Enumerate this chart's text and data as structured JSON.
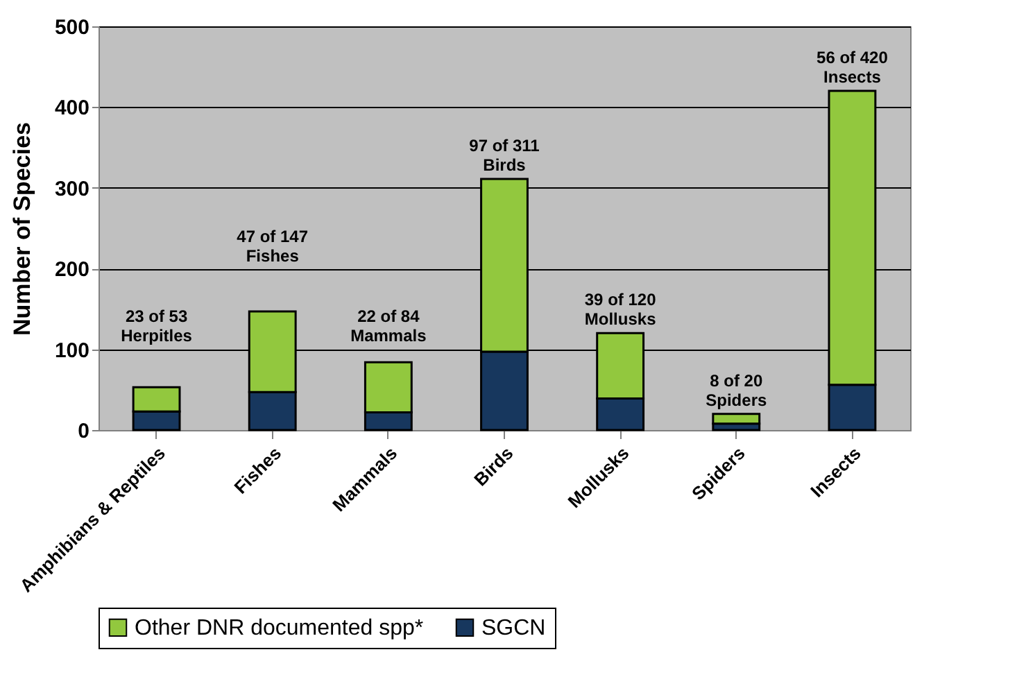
{
  "chart_data": {
    "type": "bar",
    "stacked": true,
    "ylabel": "Number of Species",
    "categories": [
      "Amphibians & Reptiles",
      "Fishes",
      "Mammals",
      "Birds",
      "Mollusks",
      "Spiders",
      "Insects"
    ],
    "series": [
      {
        "name": "SGCN",
        "color": "#17375e",
        "values": [
          23,
          47,
          22,
          97,
          39,
          8,
          56
        ]
      },
      {
        "name": "Other DNR documented spp*",
        "color": "#92c83e",
        "values": [
          30,
          100,
          62,
          214,
          81,
          12,
          364
        ]
      }
    ],
    "ylim": [
      0,
      500
    ],
    "yticks": [
      0,
      100,
      200,
      300,
      400,
      500
    ],
    "grid": "y",
    "legend": "bottom",
    "annotations": [
      {
        "text": "23 of 53\nHerpitles",
        "x": "Amphibians & Reptiles",
        "y": 53
      },
      {
        "text": "47 of 147\nFishes",
        "x": "Fishes",
        "y": 147
      },
      {
        "text": "22 of 84\nMammals",
        "x": "Mammals",
        "y": 84
      },
      {
        "text": "97 of 311\nBirds",
        "x": "Birds",
        "y": 311
      },
      {
        "text": "39 of 120\nMollusks",
        "x": "Mollusks",
        "y": 120
      },
      {
        "text": "8 of 20\nSpiders",
        "x": "Spiders",
        "y": 20
      },
      {
        "text": "56 of 420\nInsects",
        "x": "Insects",
        "y": 420
      }
    ]
  }
}
